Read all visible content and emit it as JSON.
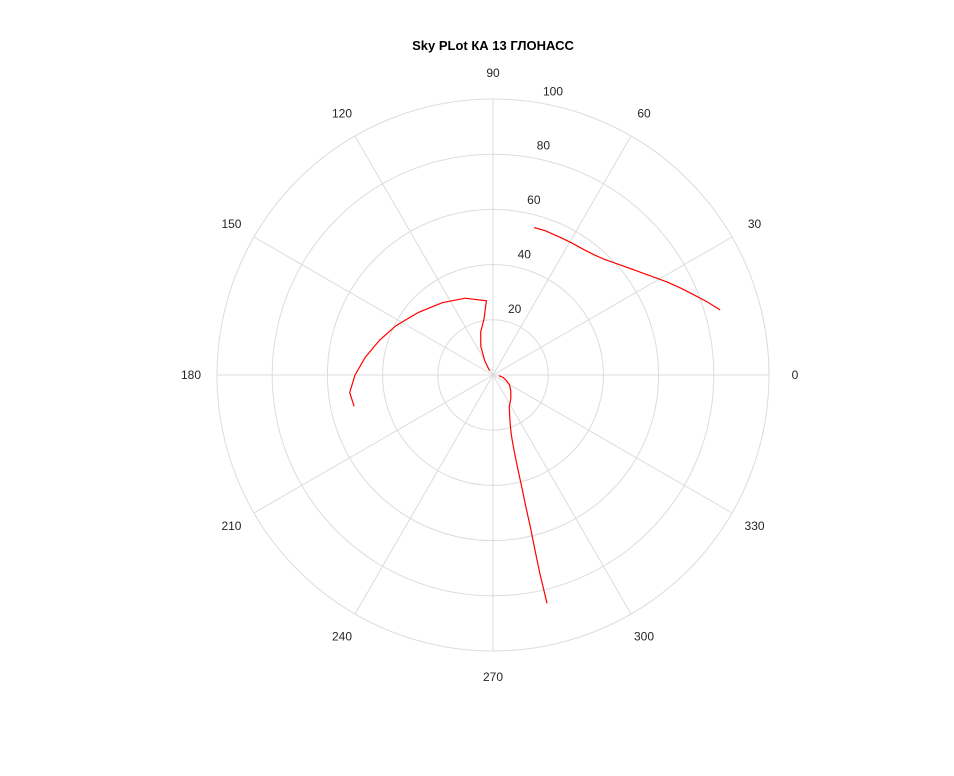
{
  "chart_data": {
    "type": "line",
    "subtype": "polar",
    "title": "Sky PLot КА 13 ГЛОНАСС",
    "angle_unit": "degrees",
    "angle_ticks": [
      0,
      30,
      60,
      90,
      120,
      150,
      180,
      210,
      240,
      270,
      300,
      330
    ],
    "angle_labels": [
      "0",
      "30",
      "60",
      "90",
      "120",
      "150",
      "180",
      "210",
      "240",
      "270",
      "300",
      "330"
    ],
    "radial_ticks": [
      20,
      40,
      60,
      80,
      100
    ],
    "radial_labels": [
      "20",
      "40",
      "60",
      "80",
      "100"
    ],
    "rlim": [
      0,
      100
    ],
    "grid": true,
    "colors": {
      "series": "#ff0000",
      "grid": "#dcdcdc",
      "text": "#262626"
    },
    "series": [
      {
        "color": "#ff0000",
        "segments": [
          {
            "theta": [
              16,
              19,
              22,
              25,
              28,
              31,
              34,
              37,
              40,
              43,
              46,
              50,
              54,
              59,
              64,
              70,
              74.4
            ],
            "r": [
              85.6,
              81.8,
              78.1,
              74.8,
              71.6,
              68.5,
              65.8,
              63.5,
              61.5,
              59.7,
              58.2,
              56.9,
              56.1,
              55.7,
              55.5,
              55.6,
              55.5
            ]
          },
          {
            "theta": [
              353,
              346,
              337,
              329,
              318,
              307,
              297,
              292,
              289,
              287,
              286,
              285.4,
              284.8,
              284.4,
              284.0,
              283.8,
              283.5,
              283.3,
              283.3
            ],
            "r": [
              2.1,
              3.8,
              5.3,
              7.0,
              8.7,
              10.7,
              13.0,
              16.2,
              19.3,
              22.8,
              26.3,
              29.8,
              35.2,
              41.5,
              48.9,
              56.5,
              64.5,
              73.3,
              85.0
            ]
          },
          {
            "theta": [
              130,
              120,
              113,
              106,
              99,
              96,
              95,
              110,
              125,
              140,
              153,
              163,
              172,
              180,
              187,
              192.7
            ],
            "r": [
              2.0,
              6.0,
              11.3,
              16.2,
              20.7,
              25.3,
              27.0,
              29.6,
              32.0,
              35.3,
              39.4,
              43.0,
              46.7,
              50.0,
              52.3,
              51.6
            ]
          }
        ]
      }
    ]
  }
}
